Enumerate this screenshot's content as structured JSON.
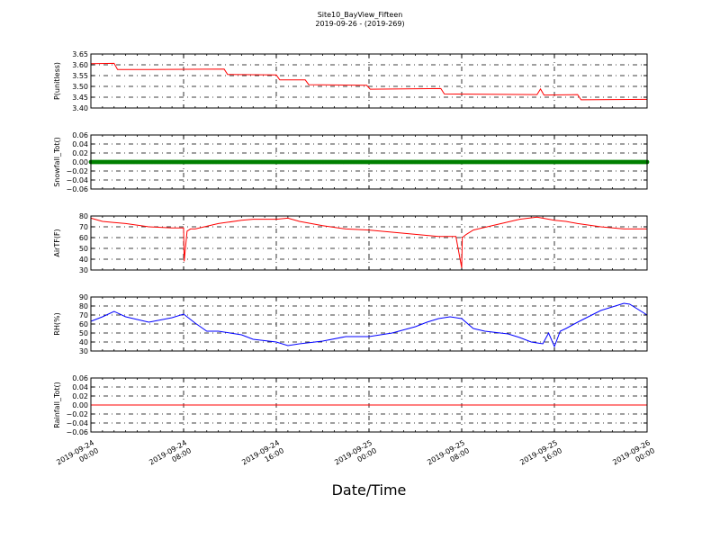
{
  "figure": {
    "title": "Site10_BayView_Fifteen",
    "subtitle": "2019-09-26 - (2019-269)",
    "xlabel": "Date/Time",
    "x_ticks": [
      {
        "date": "2019-09-24",
        "time": "00:00",
        "x": 0
      },
      {
        "date": "2019-09-24",
        "time": "08:00",
        "x": 8
      },
      {
        "date": "2019-09-24",
        "time": "16:00",
        "x": 16
      },
      {
        "date": "2019-09-25",
        "time": "00:00",
        "x": 24
      },
      {
        "date": "2019-09-25",
        "time": "08:00",
        "x": 32
      },
      {
        "date": "2019-09-25",
        "time": "16:00",
        "x": 40
      },
      {
        "date": "2019-09-26",
        "time": "00:00",
        "x": 48
      }
    ]
  },
  "chart_data": [
    {
      "type": "line",
      "ylabel": "P(unitless)",
      "ylim": [
        3.4,
        3.65
      ],
      "yticks": [
        "3.40",
        "3.45",
        "3.50",
        "3.55",
        "3.60",
        "3.65"
      ],
      "grid": true,
      "color": "#ff0000",
      "series": [
        {
          "x": [
            0,
            2,
            2.3,
            5,
            11.5,
            11.8,
            16,
            16.3,
            18.5,
            18.8,
            23.8,
            24.1,
            30.2,
            30.5,
            38.5,
            38.8,
            39.1,
            42,
            42.3,
            48
          ],
          "values": [
            3.605,
            3.607,
            3.578,
            3.578,
            3.58,
            3.555,
            3.553,
            3.53,
            3.53,
            3.508,
            3.505,
            3.487,
            3.49,
            3.465,
            3.462,
            3.488,
            3.46,
            3.462,
            3.438,
            3.44
          ]
        }
      ]
    },
    {
      "type": "scatter",
      "ylabel": "Snowfall_Tot()",
      "ylim": [
        -0.06,
        0.06
      ],
      "yticks": [
        "−0.06",
        "−0.04",
        "−0.02",
        "0.00",
        "0.02",
        "0.04",
        "0.06"
      ],
      "grid": true,
      "color": "#008000",
      "series": [
        {
          "x_range": [
            0,
            48
          ],
          "value": 0.0
        }
      ]
    },
    {
      "type": "line",
      "ylabel": "AirTF(F)",
      "ylim": [
        30,
        80
      ],
      "yticks": [
        "30",
        "40",
        "50",
        "60",
        "70",
        "80"
      ],
      "grid": true,
      "color": "#ff0000",
      "series": [
        {
          "x": [
            0,
            1,
            3,
            5,
            7,
            8,
            8.05,
            8.3,
            8.6,
            9,
            11,
            13,
            14,
            16,
            17,
            18,
            20,
            22,
            24,
            26,
            28,
            30,
            31.5,
            32,
            32.05,
            32.4,
            33,
            35,
            37,
            38.5,
            40,
            41,
            42,
            44,
            46,
            48
          ],
          "values": [
            78,
            75,
            73,
            70,
            69,
            69,
            38,
            66,
            68,
            68,
            73,
            76,
            77,
            77,
            78,
            75,
            71,
            68,
            67,
            65,
            63,
            61,
            61,
            32,
            60,
            63,
            67,
            72,
            77,
            79,
            76,
            75,
            73,
            70,
            68,
            68
          ]
        }
      ]
    },
    {
      "type": "line",
      "ylabel": "RH(%)",
      "ylim": [
        30,
        90
      ],
      "yticks": [
        "30",
        "40",
        "50",
        "60",
        "70",
        "80",
        "90"
      ],
      "grid": true,
      "color": "#0000ff",
      "series": [
        {
          "x": [
            0,
            1,
            2,
            3,
            5,
            7,
            8,
            9,
            10,
            11,
            12,
            13,
            14,
            16,
            17,
            18,
            20,
            22,
            24,
            26,
            28,
            29,
            30,
            31,
            32,
            33,
            34,
            36,
            37,
            38,
            39,
            39.5,
            40,
            40.5,
            41,
            42,
            44,
            46,
            46.5,
            48
          ],
          "values": [
            63,
            68,
            74,
            68,
            62,
            67,
            71,
            61,
            52,
            52,
            50,
            48,
            43,
            40,
            36,
            38,
            41,
            46,
            46,
            50,
            57,
            62,
            66,
            68,
            66,
            55,
            52,
            49,
            45,
            40,
            38,
            50,
            35,
            52,
            55,
            62,
            75,
            83,
            82,
            70
          ]
        }
      ]
    },
    {
      "type": "line",
      "ylabel": "Rainfall_Tot()",
      "ylim": [
        -0.06,
        0.06
      ],
      "yticks": [
        "−0.06",
        "−0.04",
        "−0.02",
        "0.00",
        "0.02",
        "0.04",
        "0.06"
      ],
      "grid": true,
      "color": "#ff0000",
      "series": [
        {
          "x": [
            0,
            48
          ],
          "values": [
            0.0,
            0.0
          ]
        }
      ]
    }
  ]
}
